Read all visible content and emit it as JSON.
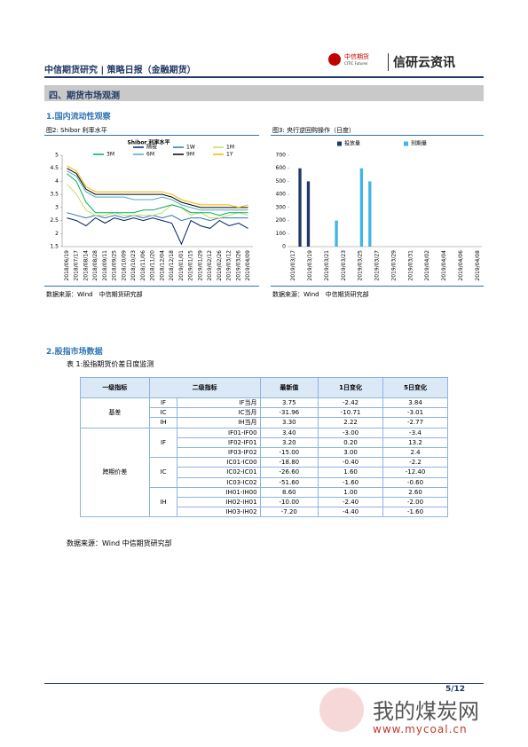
{
  "header": {
    "left": "中信期货研究 | 策略日报（金融期货）",
    "logo_cn": "中信期货",
    "logo_en": "CITIC Futures",
    "brand": "信研云资讯"
  },
  "section": "四、期货市场观测",
  "sub1": "1.国内流动性观察",
  "fig2_caption": "图2: Shibor 利率水平",
  "fig3_caption": "图3: 央行逆回购操作（日度）",
  "source1": "数据来源：Wind　中信期货研究部",
  "source2": "数据来源：Wind　中信期货研究部",
  "chart_data": [
    {
      "type": "line",
      "title": "Shibor 利率水平",
      "categories": [
        "2018/06/19",
        "2018/07/17",
        "2018/08/14",
        "2018/08/28",
        "2018/09/11",
        "2018/09/25",
        "2018/10/09",
        "2018/10/23",
        "2018/11/06",
        "2018/11/20",
        "2018/12/04",
        "2018/12/18",
        "2019/01/01",
        "2019/01/15",
        "2019/01/29",
        "2019/02/12",
        "2019/02/26",
        "2019/03/12",
        "2019/03/26",
        "2019/04/09"
      ],
      "series": [
        {
          "name": "隔夜",
          "color": "#002060",
          "values": [
            2.6,
            2.5,
            2.3,
            2.6,
            2.4,
            2.6,
            2.5,
            2.6,
            2.5,
            2.6,
            2.5,
            2.4,
            1.6,
            2.5,
            2.3,
            2.2,
            2.5,
            2.3,
            2.4,
            2.2
          ]
        },
        {
          "name": "1W",
          "color": "#2e75b6",
          "values": [
            2.8,
            2.7,
            2.6,
            2.7,
            2.6,
            2.7,
            2.6,
            2.7,
            2.6,
            2.7,
            2.6,
            2.7,
            2.5,
            2.6,
            2.6,
            2.5,
            2.6,
            2.6,
            2.6,
            2.6
          ]
        },
        {
          "name": "1M",
          "color": "#c9d96a",
          "values": [
            3.9,
            3.5,
            2.9,
            2.7,
            2.7,
            2.8,
            2.7,
            2.7,
            2.7,
            2.7,
            2.8,
            3.1,
            3.0,
            2.7,
            2.8,
            2.6,
            2.6,
            2.7,
            2.8,
            2.7
          ]
        },
        {
          "name": "3M",
          "color": "#00b050",
          "values": [
            4.3,
            4.0,
            3.2,
            2.8,
            2.8,
            2.8,
            2.8,
            2.8,
            2.9,
            2.9,
            3.0,
            3.1,
            3.0,
            2.8,
            2.8,
            2.8,
            2.7,
            2.8,
            2.8,
            2.8
          ]
        },
        {
          "name": "6M",
          "color": "#4bacc6",
          "values": [
            4.4,
            4.2,
            3.6,
            3.4,
            3.4,
            3.4,
            3.4,
            3.3,
            3.3,
            3.3,
            3.4,
            3.3,
            3.1,
            3.0,
            2.9,
            2.9,
            2.9,
            2.9,
            2.9,
            2.9
          ]
        },
        {
          "name": "9M",
          "color": "#000000",
          "values": [
            4.5,
            4.3,
            3.7,
            3.5,
            3.5,
            3.5,
            3.5,
            3.5,
            3.5,
            3.5,
            3.5,
            3.4,
            3.2,
            3.1,
            3.0,
            3.0,
            3.0,
            3.0,
            3.0,
            3.0
          ]
        },
        {
          "name": "1Y",
          "color": "#f2b500",
          "values": [
            4.6,
            4.4,
            3.8,
            3.6,
            3.6,
            3.6,
            3.6,
            3.6,
            3.6,
            3.6,
            3.6,
            3.5,
            3.3,
            3.2,
            3.1,
            3.1,
            3.1,
            3.1,
            3.0,
            3.1
          ]
        }
      ],
      "ylim": [
        1.5,
        5
      ],
      "yticks": [
        1.5,
        2,
        2.5,
        3,
        3.5,
        4,
        4.5,
        5
      ],
      "grid": false
    },
    {
      "type": "bar",
      "categories": [
        "2019/03/17",
        null,
        "2019/03/19",
        null,
        "2019/03/21",
        null,
        "2019/03/23",
        null,
        "2019/03/25",
        null,
        "2019/03/27",
        null,
        "2019/03/29",
        null,
        "2019/03/31",
        null,
        "2019/04/02",
        null,
        "2019/04/04",
        null,
        "2019/04/06",
        null,
        "2019/04/08"
      ],
      "series": [
        {
          "name": "投放量",
          "color": "#1f3864",
          "values": [
            0,
            600,
            500,
            0,
            0,
            0,
            0,
            0,
            0,
            0,
            0,
            0,
            0,
            0,
            0,
            0,
            0,
            0,
            0,
            0,
            0,
            0,
            0
          ]
        },
        {
          "name": "到期量",
          "color": "#3fb6e6",
          "values": [
            0,
            0,
            0,
            0,
            0,
            200,
            0,
            0,
            600,
            500,
            0,
            0,
            0,
            0,
            0,
            0,
            0,
            0,
            0,
            0,
            0,
            0,
            0
          ]
        }
      ],
      "ylim": [
        0,
        700
      ],
      "yticks": [
        0,
        100,
        200,
        300,
        400,
        500,
        600,
        700
      ],
      "grid": false
    }
  ],
  "sub2": "2.股指市场数据",
  "table_caption": "表 1:股指期货价差日度监测",
  "table": {
    "header": [
      "一级指标",
      "二级指标",
      "最新值",
      "1日变化",
      "5日变化"
    ],
    "groups": [
      {
        "label": "基差",
        "subs": [
          {
            "label": "IF",
            "rows": [
              [
                "IF当月",
                "3.75",
                "-2.42",
                "3.84"
              ]
            ]
          },
          {
            "label": "IC",
            "rows": [
              [
                "IC当月",
                "-31.96",
                "-10.71",
                "-3.01"
              ]
            ]
          },
          {
            "label": "IH",
            "rows": [
              [
                "IH当月",
                "3.30",
                "2.22",
                "-2.77"
              ]
            ]
          }
        ]
      },
      {
        "label": "跨期价差",
        "subs": [
          {
            "label": "IF",
            "rows": [
              [
                "IF01-IF00",
                "3.40",
                "-3.00",
                "-3.4"
              ],
              [
                "IF02-IF01",
                "3.20",
                "0.20",
                "13.2"
              ],
              [
                "IF03-IF02",
                "-15.00",
                "3.00",
                "2.4"
              ]
            ]
          },
          {
            "label": "IC",
            "rows": [
              [
                "IC01-IC00",
                "-18.80",
                "-0.40",
                "-2.2"
              ],
              [
                "IC02-IC01",
                "-26.60",
                "1.60",
                "-12.40"
              ],
              [
                "IC03-IC02",
                "-51.60",
                "-1.60",
                "-0.60"
              ]
            ]
          },
          {
            "label": "IH",
            "rows": [
              [
                "IH01-IH00",
                "8.60",
                "1.00",
                "2.60"
              ],
              [
                "IH02-IH01",
                "-10.00",
                "-2.40",
                "-2.00"
              ],
              [
                "IH03-IH02",
                "-7.20",
                "-4.40",
                "-1.60"
              ]
            ]
          }
        ]
      }
    ]
  },
  "table_source": "数据来源：Wind  中信期货研究部",
  "footer": {
    "page": "5/12"
  },
  "watermark": {
    "cn": "我的煤炭网",
    "url": "www.mycoal.cn"
  }
}
